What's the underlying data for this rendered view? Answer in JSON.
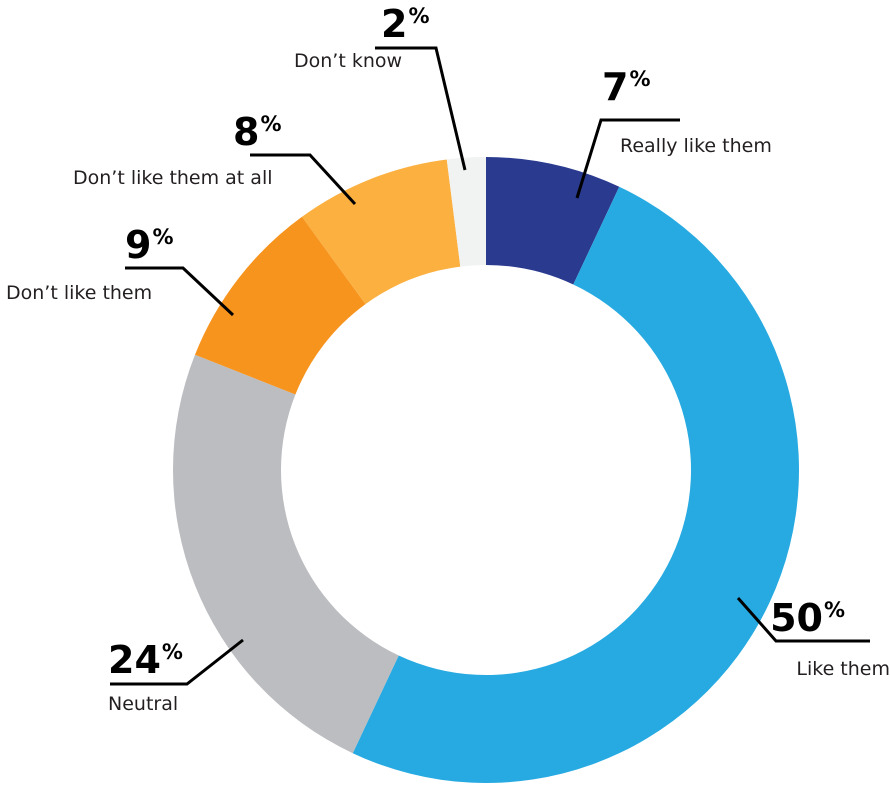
{
  "chart_data": {
    "type": "pie",
    "variant": "donut",
    "title": "",
    "start_angle_deg": 0,
    "direction": "clockwise",
    "unit_suffix": "%",
    "slices": [
      {
        "label": "Really like them",
        "value": 7,
        "display": "7",
        "color": "#293a8f"
      },
      {
        "label": "Like them",
        "value": 50,
        "display": "50",
        "color": "#27aae1"
      },
      {
        "label": "Neutral",
        "value": 24,
        "display": "24",
        "color": "#bcbdc0"
      },
      {
        "label": "Don’t like them",
        "value": 9,
        "display": "9",
        "color": "#f7941e"
      },
      {
        "label": "Don’t like them at all",
        "value": 8,
        "display": "8",
        "color": "#fbb040"
      },
      {
        "label": "Don’t know",
        "value": 2,
        "display": "2",
        "color": "#f1f2f2"
      }
    ],
    "legend": "none",
    "label_placement": "outside-with-leader-lines"
  }
}
